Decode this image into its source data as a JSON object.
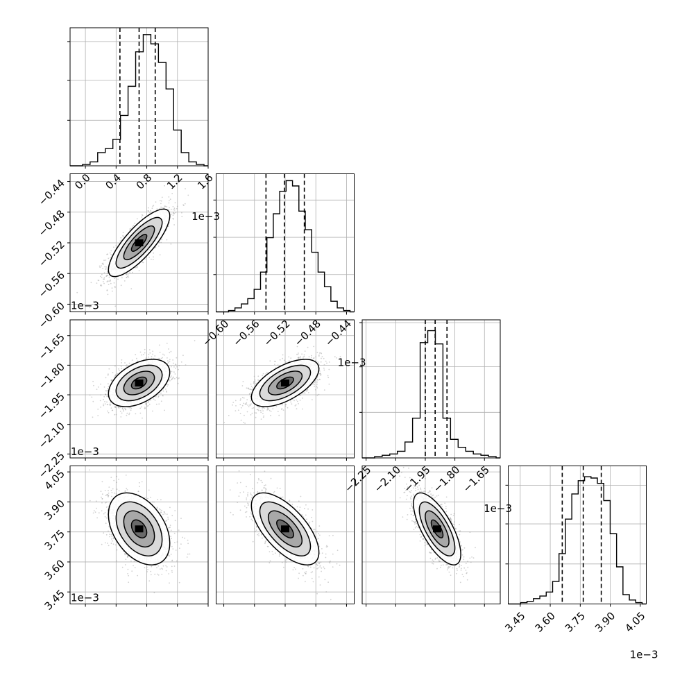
{
  "chart_data": {
    "type": "corner",
    "parameters": [
      {
        "range": [
          -0.0002,
          0.0016
        ],
        "ticks": [
          0.0,
          0.0004,
          0.0008,
          0.0012,
          0.0016
        ],
        "tick_labels": [
          "0.0",
          "0.4",
          "0.8",
          "1.2",
          "1.6"
        ],
        "offset": "1e−3",
        "quantiles": [
          0.00045,
          0.0007,
          0.00091
        ],
        "histogram": [
          0.01,
          0.03,
          0.1,
          0.13,
          0.2,
          0.38,
          0.6,
          0.86,
          0.99,
          0.92,
          0.78,
          0.58,
          0.27,
          0.1,
          0.03,
          0.01
        ],
        "hist_ytick_fractions": [
          0.33,
          0.62,
          0.9
        ]
      },
      {
        "range": [
          -0.61,
          -0.43
        ],
        "ticks": [
          -0.6,
          -0.56,
          -0.52,
          -0.48,
          -0.44
        ],
        "tick_labels": [
          "−0.60",
          "−0.56",
          "−0.52",
          "−0.48",
          "−0.44"
        ],
        "offset": "1e−3",
        "quantiles": [
          -0.545,
          -0.521,
          -0.495
        ],
        "histogram": [
          0.01,
          0.03,
          0.06,
          0.1,
          0.17,
          0.3,
          0.56,
          0.74,
          0.91,
          0.99,
          0.95,
          0.76,
          0.62,
          0.45,
          0.3,
          0.19,
          0.08,
          0.03,
          0.01
        ],
        "hist_ytick_fractions": [
          0.27,
          0.54,
          0.81
        ]
      },
      {
        "range": [
          -2.27,
          -1.57
        ],
        "ticks": [
          -2.25,
          -2.1,
          -1.95,
          -1.8,
          -1.65
        ],
        "tick_labels": [
          "−2.25",
          "−2.10",
          "−1.95",
          "−1.80",
          "−1.65"
        ],
        "offset": "1e−3",
        "quantiles": [
          -1.95,
          -1.9,
          -1.84
        ],
        "histogram": [
          0.01,
          0.02,
          0.03,
          0.05,
          0.12,
          0.3,
          0.87,
          0.96,
          0.86,
          0.3,
          0.14,
          0.08,
          0.05,
          0.03,
          0.02,
          0.01
        ],
        "hist_ytick_fractions": [
          0.33,
          0.66,
          0.98
        ]
      },
      {
        "range": [
          3.39,
          4.08
        ],
        "ticks": [
          3.45,
          3.6,
          3.75,
          3.9,
          4.05
        ],
        "tick_labels": [
          "3.45",
          "3.60",
          "3.75",
          "3.90",
          "4.05"
        ],
        "offset": "1e−3",
        "quantiles": [
          3.66,
          3.765,
          3.855
        ],
        "histogram": [
          0.01,
          0.02,
          0.04,
          0.06,
          0.09,
          0.17,
          0.38,
          0.64,
          0.83,
          0.93,
          0.96,
          0.95,
          0.91,
          0.78,
          0.53,
          0.28,
          0.07,
          0.03,
          0.01
        ],
        "hist_ytick_fractions": [
          0.29,
          0.58,
          0.86
        ]
      }
    ],
    "pairs": [
      {
        "row": 1,
        "col": 0,
        "mean": [
          0.0007,
          -0.52
        ],
        "sd": [
          0.0002,
          0.022
        ],
        "corr": 0.8,
        "n": 1600
      },
      {
        "row": 2,
        "col": 0,
        "mean": [
          0.0007,
          -1.89
        ],
        "sd": [
          0.0002,
          0.06
        ],
        "corr": 0.45,
        "n": 1600
      },
      {
        "row": 2,
        "col": 1,
        "mean": [
          -0.52,
          -1.89
        ],
        "sd": [
          0.022,
          0.06
        ],
        "corr": 0.6,
        "n": 1600
      },
      {
        "row": 3,
        "col": 0,
        "mean": [
          0.0007,
          3.765
        ],
        "sd": [
          0.0002,
          0.09
        ],
        "corr": -0.4,
        "n": 1600
      },
      {
        "row": 3,
        "col": 1,
        "mean": [
          -0.52,
          3.765
        ],
        "sd": [
          0.022,
          0.09
        ],
        "corr": -0.65,
        "n": 1600
      },
      {
        "row": 3,
        "col": 2,
        "mean": [
          -1.89,
          3.765
        ],
        "sd": [
          0.06,
          0.09
        ],
        "corr": -0.7,
        "n": 1600
      }
    ]
  }
}
